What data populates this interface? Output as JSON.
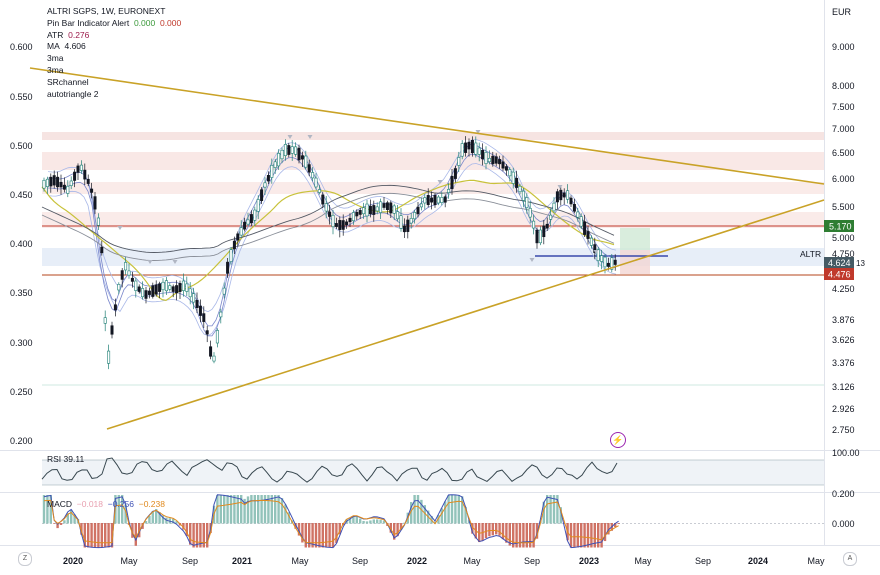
{
  "legend": {
    "symbol": "ALTRI SGPS, 1W, EURONEXT",
    "pinbar_label": "Pin Bar Indicator Alert",
    "pinbar_v1": "0.000",
    "pinbar_v2": "0.000",
    "atr_label": "ATR",
    "atr_value": "0.276",
    "ma_label": "MA",
    "ma_value": "4.606",
    "line_3ma_a": "3ma",
    "line_3ma_b": "3ma",
    "srchannel": "SRchannel",
    "autotriangle": "autotriangle 2"
  },
  "currency": "EUR",
  "left_axis": [
    "0.600",
    "0.550",
    "0.500",
    "0.450",
    "0.400",
    "0.350",
    "0.300",
    "0.250",
    "0.200"
  ],
  "right_axis": [
    "9.000",
    "8.000",
    "7.500",
    "7.000",
    "6.500",
    "6.000",
    "5.500",
    "5.000",
    "4.750",
    "4.250",
    "3.876",
    "3.626",
    "3.376",
    "3.126",
    "2.926",
    "2.750"
  ],
  "price_tags": {
    "green": "5.170",
    "altr_label": "ALTR",
    "current": "4.624",
    "current_suffix": "13",
    "red": "4.476"
  },
  "rsi": {
    "label": "RSI",
    "value": "39.11",
    "axis_top": "100.00",
    "axis_bottom": "0.200"
  },
  "macd": {
    "label": "MACD",
    "v1": "−0.018",
    "v2": "−0.256",
    "v3": "−0.238",
    "axis_zero": "0.000"
  },
  "time_axis": [
    "2020",
    "May",
    "Sep",
    "2021",
    "May",
    "Sep",
    "2022",
    "May",
    "Sep",
    "2023",
    "May",
    "Sep",
    "2024",
    "May"
  ],
  "buttons": {
    "zoom": "Z",
    "auto": "A"
  },
  "colors": {
    "up": "#26a69a",
    "down": "#131722",
    "triangle": "#c9a227",
    "ma": "#c8c23a",
    "macd_line": "#3f51b5",
    "signal": "#e08a1e"
  }
}
